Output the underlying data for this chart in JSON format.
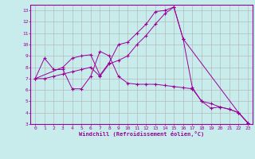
{
  "xlabel": "Windchill (Refroidissement éolien,°C)",
  "background_color": "#c8ecec",
  "line_color": "#990099",
  "grid_color": "#b0b0b0",
  "xlim": [
    -0.5,
    23.5
  ],
  "ylim": [
    3,
    13.5
  ],
  "yticks": [
    3,
    4,
    5,
    6,
    7,
    8,
    9,
    10,
    11,
    12,
    13
  ],
  "xticks": [
    0,
    1,
    2,
    3,
    4,
    5,
    6,
    7,
    8,
    9,
    10,
    11,
    12,
    13,
    14,
    15,
    16,
    17,
    18,
    19,
    20,
    21,
    22,
    23
  ],
  "line1_x": [
    0,
    1,
    2,
    3,
    4,
    5,
    6,
    7,
    8,
    9,
    10,
    11,
    12,
    13,
    14,
    15,
    16,
    17,
    18,
    19,
    20,
    21,
    22,
    23
  ],
  "line1_y": [
    7.0,
    8.8,
    7.8,
    7.8,
    6.1,
    6.1,
    7.2,
    9.4,
    9.0,
    7.2,
    6.6,
    6.5,
    6.5,
    6.5,
    6.4,
    6.3,
    6.2,
    6.1,
    5.0,
    4.4,
    4.5,
    4.3,
    4.0,
    3.1
  ],
  "line2_x": [
    0,
    1,
    2,
    3,
    4,
    5,
    6,
    7,
    8,
    9,
    10,
    11,
    12,
    13,
    14,
    15,
    16,
    22,
    23
  ],
  "line2_y": [
    7.0,
    7.0,
    7.2,
    7.4,
    7.6,
    7.8,
    8.0,
    7.2,
    8.3,
    8.6,
    9.0,
    10.0,
    10.8,
    11.8,
    12.7,
    13.3,
    10.5,
    4.0,
    3.1
  ],
  "line3_x": [
    0,
    3,
    4,
    5,
    6,
    7,
    8,
    9,
    10,
    11,
    12,
    13,
    14,
    15,
    16,
    17,
    18,
    19,
    20,
    21,
    22,
    23
  ],
  "line3_y": [
    7.0,
    8.0,
    8.8,
    9.0,
    9.1,
    7.3,
    8.4,
    10.0,
    10.2,
    11.0,
    11.8,
    12.9,
    13.0,
    13.3,
    10.5,
    6.2,
    5.0,
    4.8,
    4.5,
    4.3,
    4.0,
    3.1
  ]
}
